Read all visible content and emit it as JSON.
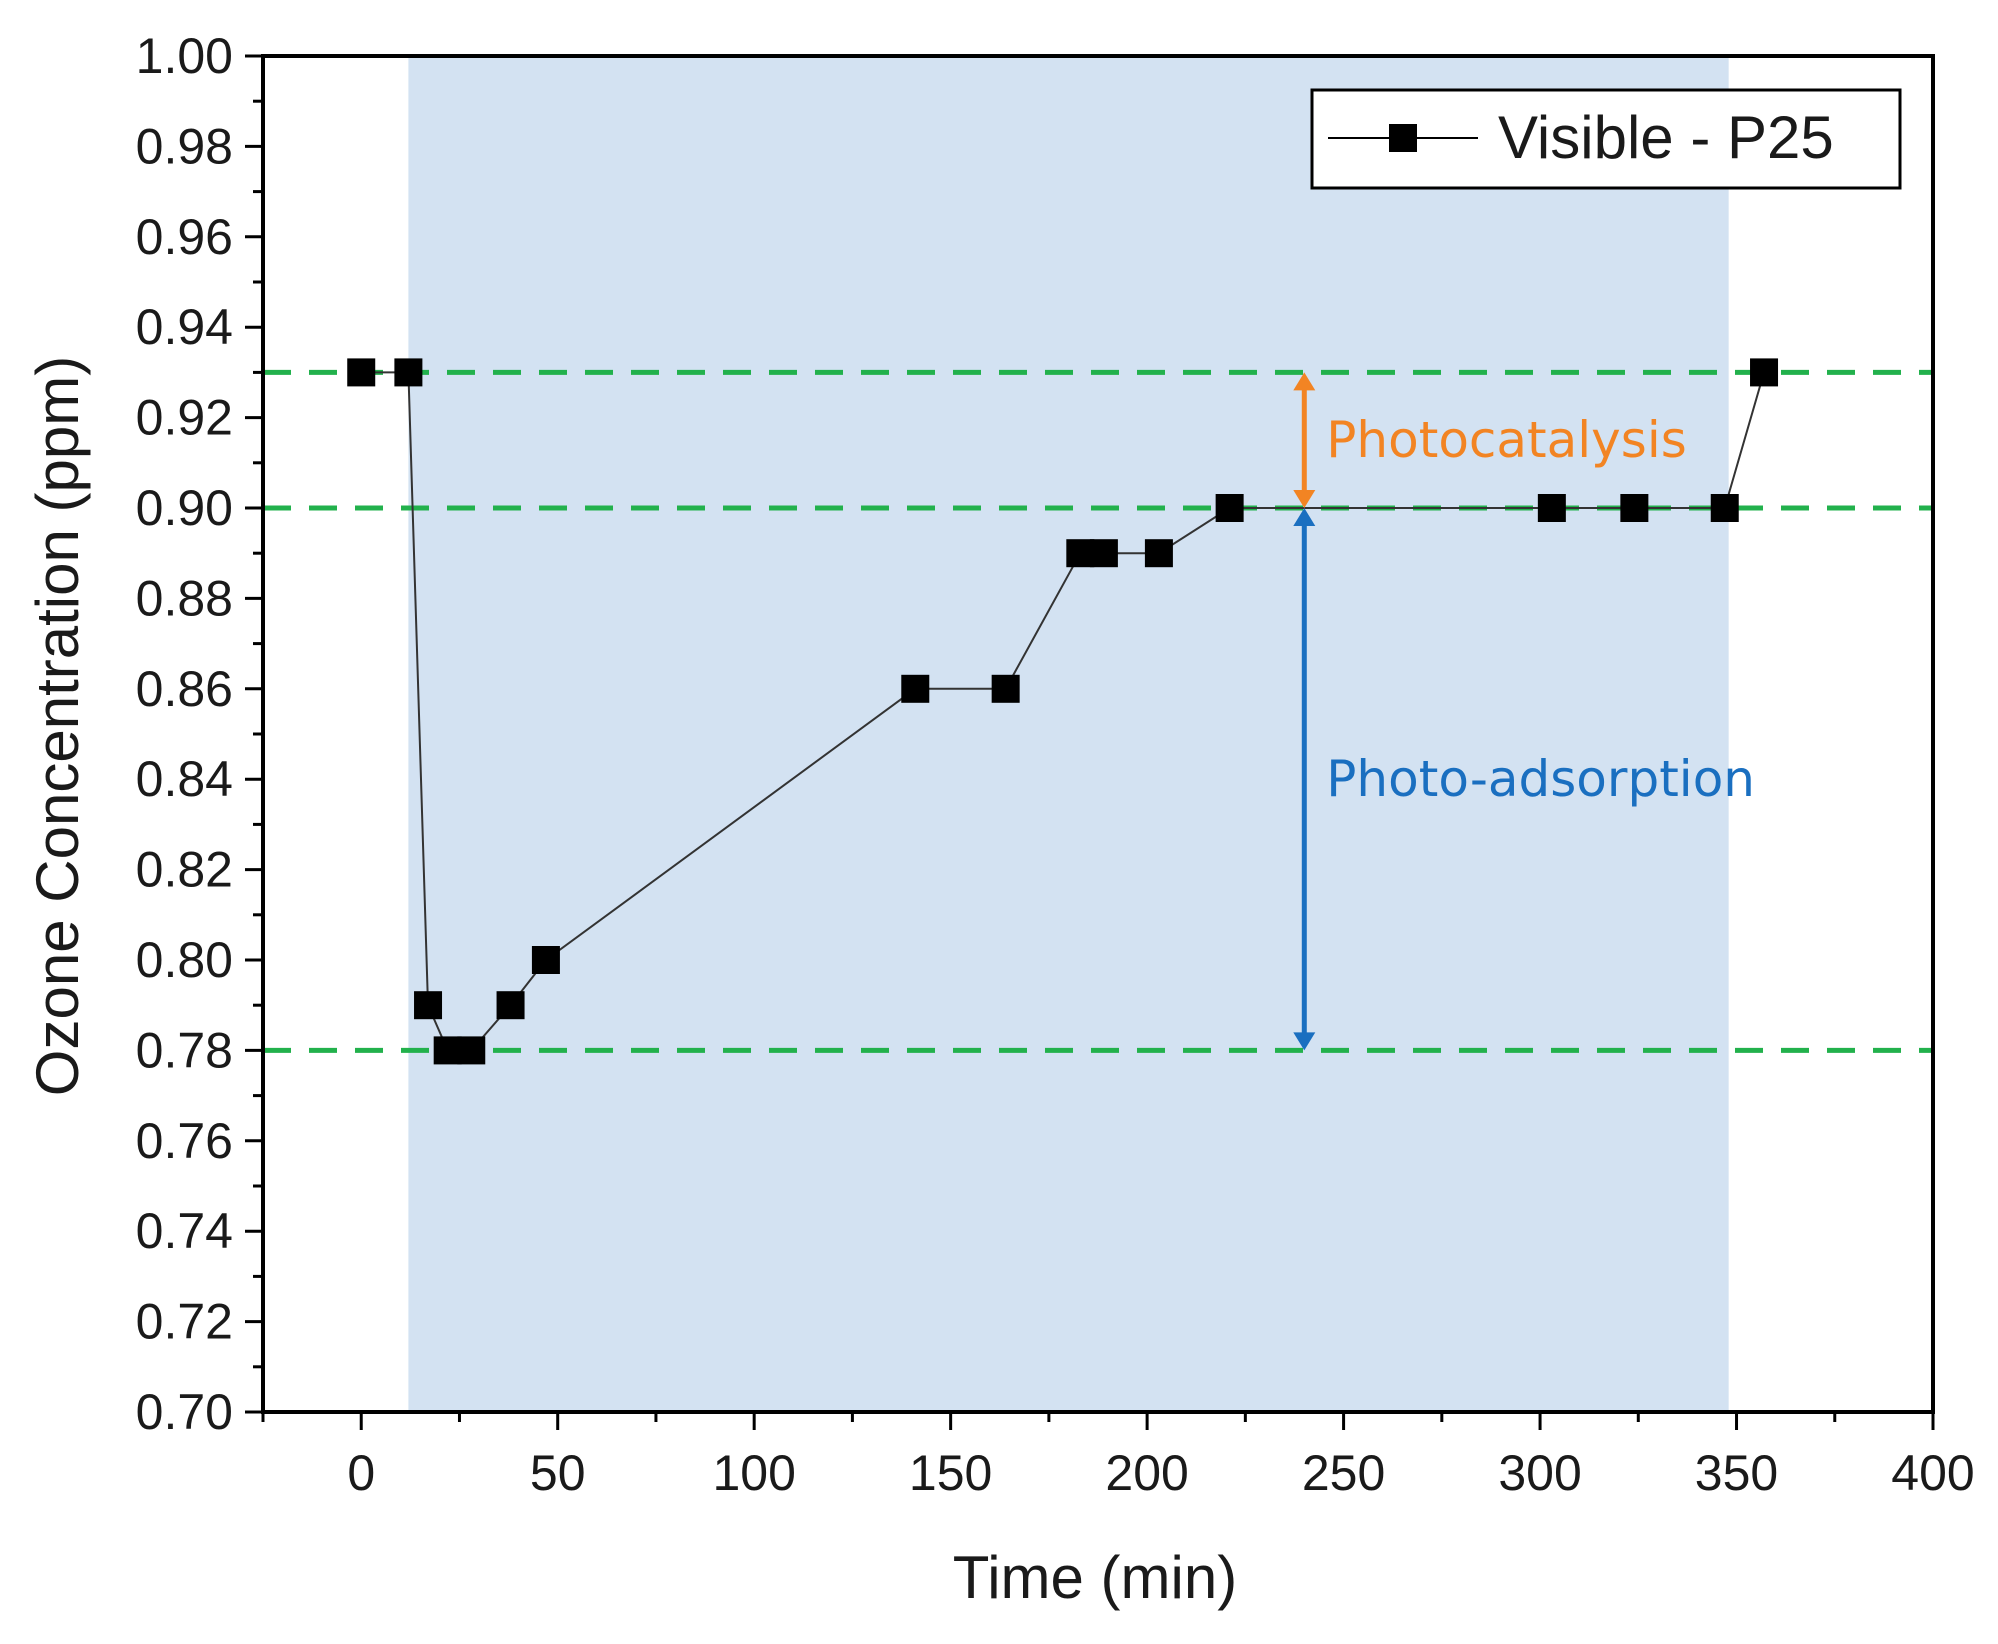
{
  "chart_data": {
    "type": "line",
    "title": "",
    "xlabel": "Time (min)",
    "ylabel": "Ozone Concentration (ppm)",
    "xlim": [
      -25,
      400
    ],
    "ylim": [
      0.7,
      1.0
    ],
    "x_ticks": [
      0,
      50,
      100,
      150,
      200,
      250,
      300,
      350,
      400
    ],
    "y_ticks": [
      0.7,
      0.72,
      0.74,
      0.76,
      0.78,
      0.8,
      0.82,
      0.84,
      0.86,
      0.88,
      0.9,
      0.92,
      0.94,
      0.96,
      0.98,
      1.0
    ],
    "x_tick_labels": [
      "0",
      "50",
      "100",
      "150",
      "200",
      "250",
      "300",
      "350",
      "400"
    ],
    "y_tick_labels": [
      "0.70",
      "0.72",
      "0.74",
      "0.76",
      "0.78",
      "0.80",
      "0.82",
      "0.84",
      "0.86",
      "0.88",
      "0.90",
      "0.92",
      "0.94",
      "0.96",
      "0.98",
      "1.00"
    ],
    "grid": false,
    "legend_position": "top-right",
    "series": [
      {
        "name": "Visible - P25",
        "marker": "square",
        "color": "#000000",
        "x": [
          0,
          12,
          17,
          22,
          28,
          38,
          47,
          141,
          164,
          183,
          189,
          203,
          221,
          303,
          324,
          347,
          357
        ],
        "y": [
          0.93,
          0.93,
          0.79,
          0.78,
          0.78,
          0.79,
          0.8,
          0.86,
          0.86,
          0.89,
          0.89,
          0.89,
          0.9,
          0.9,
          0.9,
          0.9,
          0.93
        ]
      }
    ],
    "shaded_region": {
      "x_start": 12,
      "x_end": 348,
      "color": "#d3e2f2"
    },
    "reference_lines": [
      {
        "y": 0.93,
        "color": "#22b14c",
        "style": "dashed"
      },
      {
        "y": 0.9,
        "color": "#22b14c",
        "style": "dashed"
      },
      {
        "y": 0.78,
        "color": "#22b14c",
        "style": "dashed"
      }
    ],
    "annotations": [
      {
        "text": "Photocatalysis",
        "color": "#f28423",
        "x": 240,
        "y_from": 0.9,
        "y_to": 0.93
      },
      {
        "text": "Photo-adsorption",
        "color": "#1a6fc0",
        "x": 240,
        "y_from": 0.78,
        "y_to": 0.9
      }
    ],
    "axis_color": "#000000"
  }
}
